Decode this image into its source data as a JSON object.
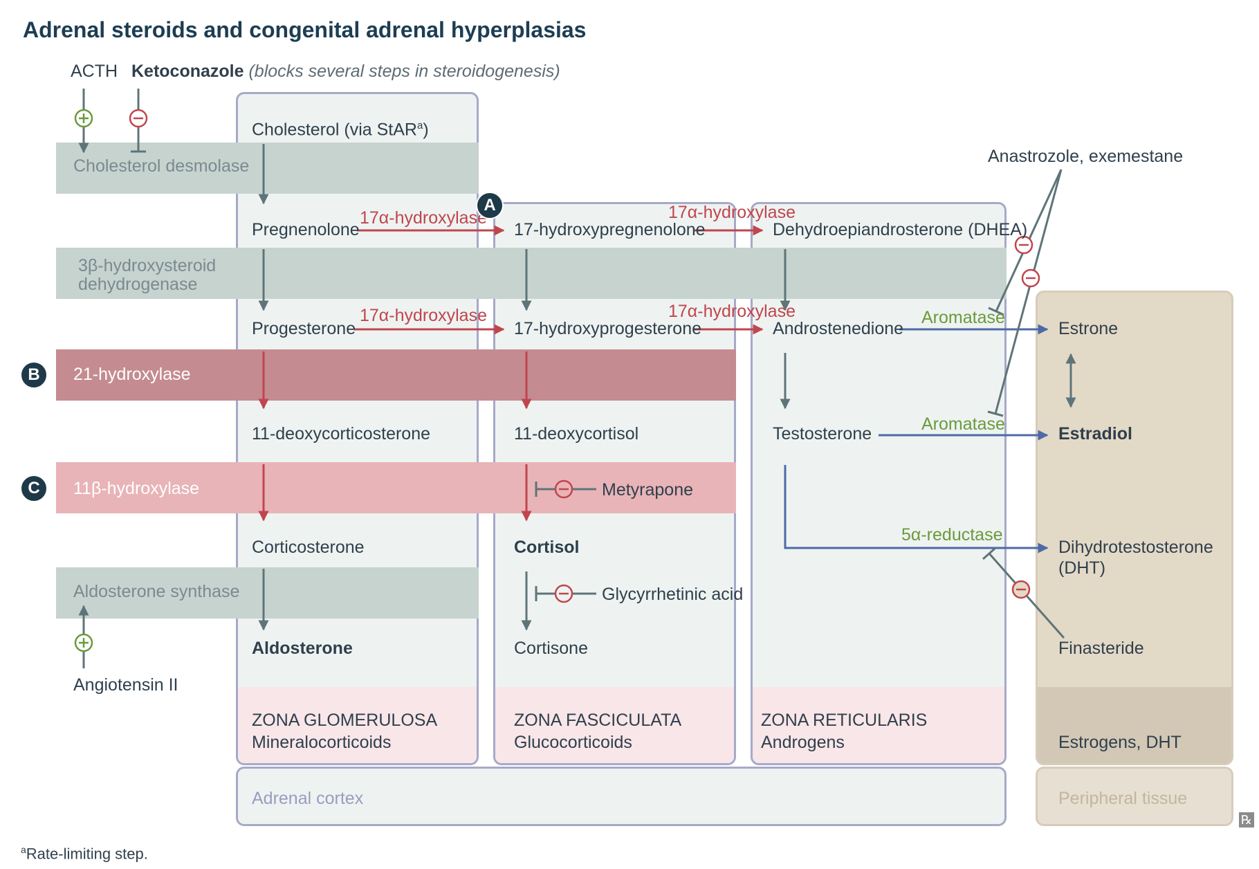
{
  "title": "Adrenal steroids and congenital adrenal hyperplasias",
  "regulators": {
    "acth": "ACTH",
    "ketoconazole": "Ketoconazole",
    "ketoconazole_note": "(blocks several steps in steroidogenesis)",
    "angiotensin": "Angiotensin II",
    "anastrozole": "Anastrozole, exemestane",
    "finasteride": "Finasteride",
    "metyrapone": "Metyrapone",
    "glycyrrhetinic": "Glycyrrhetinic acid"
  },
  "enzymes": {
    "cholesterol_desmolase": "Cholesterol desmolase",
    "hsd_line1": "3β-hydroxysteroid",
    "hsd_line2": "dehydrogenase",
    "hydroxylase21": "21-hydroxylase",
    "hydroxylase11b": "11β-hydroxylase",
    "aldosterone_synthase": "Aldosterone synthase",
    "hydroxylase17a": "17α-hydroxylase",
    "aromatase": "Aromatase",
    "reductase5a": "5α-reductase"
  },
  "badges": {
    "a": "A",
    "b": "B",
    "c": "C"
  },
  "steroids": {
    "cholesterol": "Cholesterol (via StAR",
    "cholesterol_sup": "a",
    "cholesterol_close": ")",
    "pregnenolone": "Pregnenolone",
    "progesterone": "Progesterone",
    "deoxycorticosterone": "11-deoxycorticosterone",
    "corticosterone": "Corticosterone",
    "aldosterone": "Aldosterone",
    "hydroxypregnenolone": "17-hydroxypregnenolone",
    "hydroxyprogesterone": "17-hydroxyprogesterone",
    "deoxycortisol": "11-deoxycortisol",
    "cortisol": "Cortisol",
    "cortisone": "Cortisone",
    "dhea": "Dehydroepiandrosterone (DHEA)",
    "androstenedione": "Androstenedione",
    "testosterone": "Testosterone",
    "estrone": "Estrone",
    "estradiol": "Estradiol",
    "dht_line1": "Dihydrotestosterone",
    "dht_line2": "(DHT)"
  },
  "zones": {
    "glomerulosa": "ZONA GLOMERULOSA",
    "glomerulosa_sub": "Mineralocorticoids",
    "fasciculata": "ZONA FASCICULATA",
    "fasciculata_sub": "Glucocorticoids",
    "reticularis": "ZONA RETICULARIS",
    "reticularis_sub": "Androgens",
    "peripheral_sub": "Estrogens, DHT",
    "adrenal_cortex": "Adrenal cortex",
    "peripheral_tissue": "Peripheral tissue"
  },
  "footnote_sup": "a",
  "footnote": "Rate-limiting step.",
  "corner_mark": "℞",
  "colors": {
    "zone_border": "#a6a9c8",
    "zone_fill": "#eef3f1",
    "zone_foot": "#f8e6e8",
    "grey_band": "#c6d3cf",
    "band_21": "#c48b91",
    "band_11b": "#e8b4b7",
    "peripheral": "#e3d9c7",
    "peripheral_foot": "#d2c8b5",
    "arrow_grey": "#5f7478",
    "arrow_red": "#c0454e",
    "arrow_blue": "#4d6aa6",
    "green": "#6b9a3c",
    "title": "#1d3d52"
  }
}
